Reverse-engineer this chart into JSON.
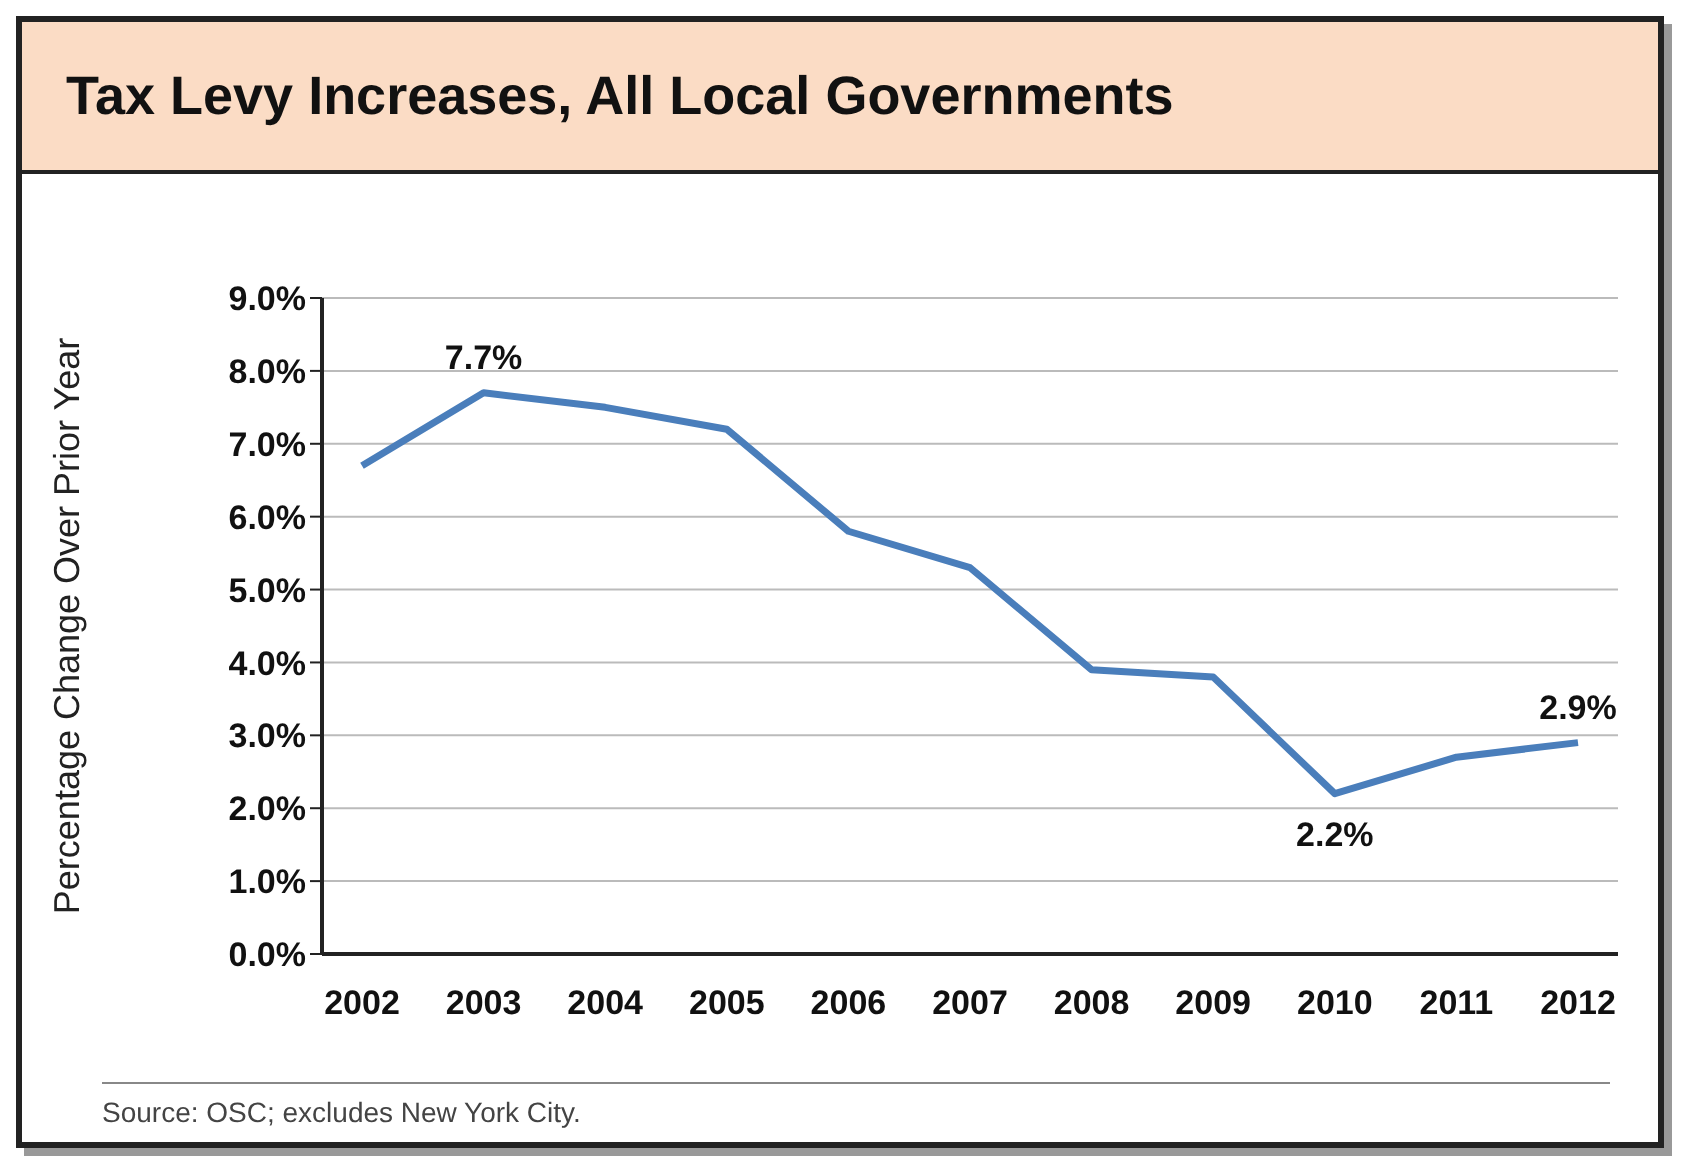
{
  "chart_data": {
    "type": "line",
    "title": "Tax Levy Increases, All Local Governments",
    "ylabel": "Percentage Change Over Prior Year",
    "categories": [
      "2002",
      "2003",
      "2004",
      "2005",
      "2006",
      "2007",
      "2008",
      "2009",
      "2010",
      "2011",
      "2012"
    ],
    "series": [
      {
        "color": "#4a7ebb",
        "values": [
          6.7,
          7.7,
          7.5,
          7.2,
          5.8,
          5.3,
          3.9,
          3.8,
          2.2,
          2.7,
          2.9
        ],
        "value_labels": [
          null,
          "7.7%",
          null,
          null,
          null,
          null,
          null,
          null,
          "2.2%",
          null,
          "2.9%"
        ]
      }
    ],
    "ylim": [
      0,
      9
    ],
    "yticks": [
      {
        "value": 0,
        "label": "0.0%"
      },
      {
        "value": 1,
        "label": "1.0%"
      },
      {
        "value": 2,
        "label": "2.0%"
      },
      {
        "value": 3,
        "label": "3.0%"
      },
      {
        "value": 4,
        "label": "4.0%"
      },
      {
        "value": 5,
        "label": "5.0%"
      },
      {
        "value": 6,
        "label": "6.0%"
      },
      {
        "value": 7,
        "label": "7.0%"
      },
      {
        "value": 8,
        "label": "8.0%"
      },
      {
        "value": 9,
        "label": "9.0%"
      }
    ],
    "grid": "y",
    "legend": false,
    "marker": "none",
    "line_style": "solid",
    "annotations": [
      "Source: OSC; excludes New York City."
    ]
  }
}
